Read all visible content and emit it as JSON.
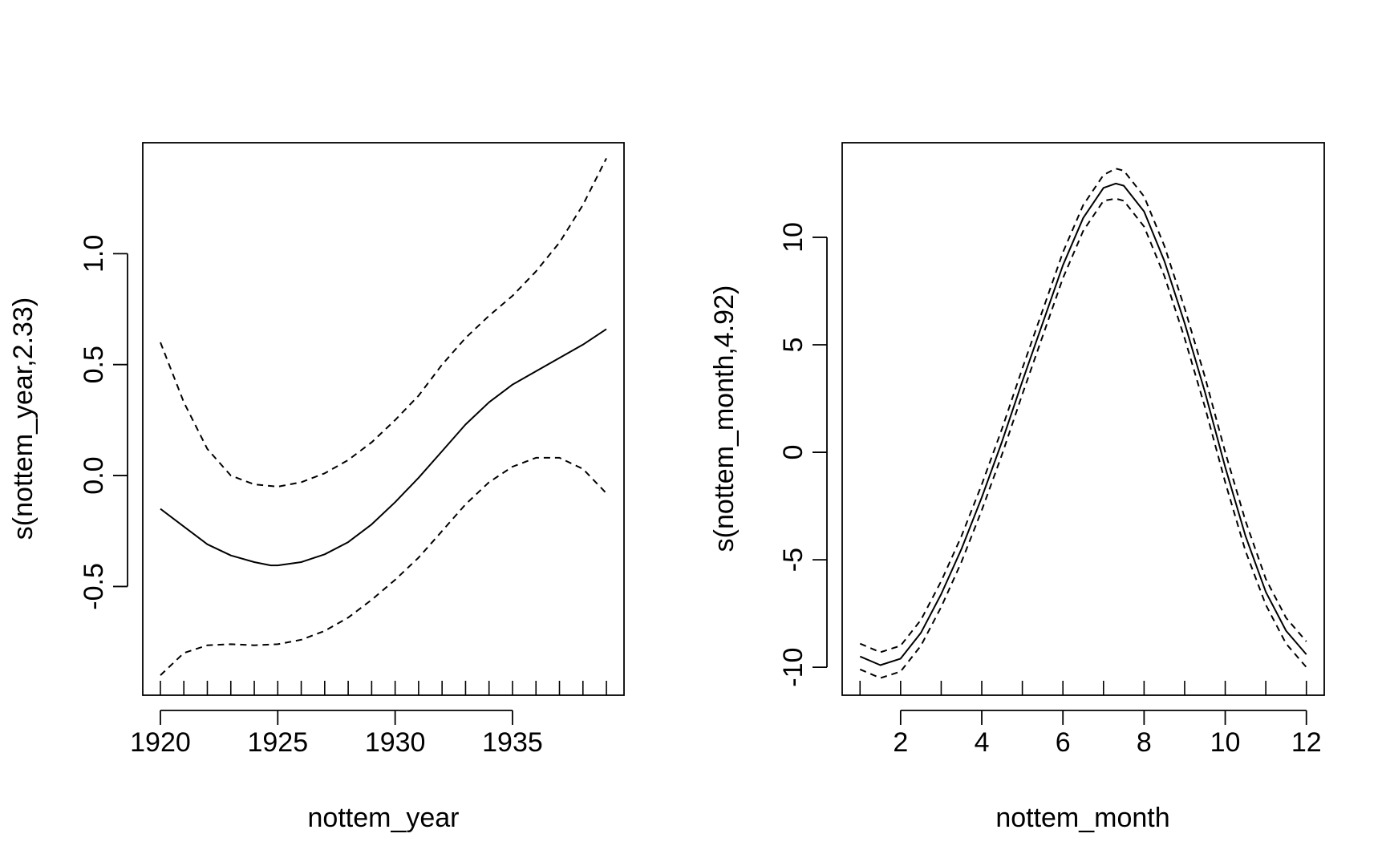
{
  "chart_data": [
    {
      "type": "line",
      "xlabel": "nottem_year",
      "ylabel": "s(nottem_year,2.33)",
      "xlim": [
        1919.25,
        1939.75
      ],
      "ylim": [
        -0.99,
        1.5
      ],
      "xticks": [
        1920,
        1925,
        1930,
        1935
      ],
      "xtick_labels": [
        "1920",
        "1925",
        "1930",
        "1935"
      ],
      "yticks": [
        -0.5,
        0.0,
        0.5,
        1.0
      ],
      "ytick_labels": [
        "-0.5",
        "0.0",
        "0.5",
        "1.0"
      ],
      "rug": [
        1920,
        1921,
        1922,
        1923,
        1924,
        1925,
        1926,
        1927,
        1928,
        1929,
        1930,
        1931,
        1932,
        1933,
        1934,
        1935,
        1936,
        1937,
        1938,
        1939
      ],
      "grid": false,
      "series": [
        {
          "style": "solid",
          "x": [
            1920,
            1921,
            1922,
            1923,
            1924,
            1924.7,
            1925,
            1926,
            1927,
            1928,
            1929,
            1930,
            1931,
            1932,
            1933,
            1934,
            1935,
            1936,
            1937,
            1938,
            1939
          ],
          "y": [
            -0.15,
            -0.23,
            -0.31,
            -0.36,
            -0.39,
            -0.405,
            -0.405,
            -0.39,
            -0.355,
            -0.3,
            -0.22,
            -0.12,
            -0.01,
            0.11,
            0.23,
            0.33,
            0.41,
            0.47,
            0.53,
            0.59,
            0.66
          ]
        },
        {
          "style": "dashed",
          "x": [
            1920,
            1921,
            1922,
            1923,
            1924,
            1925,
            1926,
            1927,
            1928,
            1929,
            1930,
            1931,
            1932,
            1933,
            1934,
            1935,
            1936,
            1937,
            1938,
            1939
          ],
          "y": [
            0.6,
            0.33,
            0.12,
            0.0,
            -0.04,
            -0.05,
            -0.03,
            0.01,
            0.07,
            0.15,
            0.25,
            0.36,
            0.5,
            0.62,
            0.72,
            0.81,
            0.92,
            1.05,
            1.22,
            1.43
          ]
        },
        {
          "style": "dashed",
          "x": [
            1920,
            1921,
            1922,
            1923,
            1924,
            1925,
            1926,
            1927,
            1928,
            1929,
            1930,
            1931,
            1932,
            1933,
            1934,
            1935,
            1936,
            1937,
            1938,
            1939
          ],
          "y": [
            -0.9,
            -0.8,
            -0.765,
            -0.76,
            -0.765,
            -0.76,
            -0.74,
            -0.7,
            -0.64,
            -0.56,
            -0.47,
            -0.37,
            -0.25,
            -0.13,
            -0.03,
            0.04,
            0.08,
            0.08,
            0.03,
            -0.08
          ]
        }
      ]
    },
    {
      "type": "line",
      "xlabel": "nottem_month",
      "ylabel": "s(nottem_month,4.92)",
      "xlim": [
        0.56,
        12.44
      ],
      "ylim": [
        -11.3,
        14.4
      ],
      "xticks": [
        2,
        4,
        6,
        8,
        10,
        12
      ],
      "xtick_labels": [
        "2",
        "4",
        "6",
        "8",
        "10",
        "12"
      ],
      "yticks": [
        -10,
        -5,
        0,
        5,
        10
      ],
      "ytick_labels": [
        "-10",
        "-5",
        "0",
        "5",
        "10"
      ],
      "rug": [
        1,
        2,
        3,
        4,
        5,
        6,
        7,
        8,
        9,
        10,
        11,
        12
      ],
      "grid": false,
      "series": [
        {
          "style": "solid",
          "x": [
            1,
            1.5,
            2,
            2.5,
            3,
            3.5,
            4,
            4.5,
            5,
            5.5,
            6,
            6.5,
            7,
            7.3,
            7.5,
            8,
            8.5,
            9,
            9.5,
            10,
            10.5,
            11,
            11.5,
            12
          ],
          "y": [
            -9.5,
            -9.9,
            -9.6,
            -8.4,
            -6.6,
            -4.5,
            -2.1,
            0.5,
            3.3,
            6.0,
            8.7,
            10.9,
            12.3,
            12.5,
            12.4,
            11.2,
            8.9,
            6.0,
            2.8,
            -0.7,
            -3.9,
            -6.5,
            -8.3,
            -9.4
          ]
        },
        {
          "style": "dashed",
          "x": [
            1,
            1.5,
            2,
            2.5,
            3,
            3.5,
            4,
            4.5,
            5,
            5.5,
            6,
            6.5,
            7,
            7.3,
            7.5,
            8,
            8.5,
            9,
            9.5,
            10,
            10.5,
            11,
            11.5,
            12
          ],
          "y": [
            -8.9,
            -9.3,
            -9.0,
            -7.8,
            -6.0,
            -3.9,
            -1.5,
            1.1,
            3.9,
            6.6,
            9.3,
            11.5,
            12.9,
            13.2,
            13.1,
            11.9,
            9.6,
            6.7,
            3.5,
            0.0,
            -3.2,
            -5.9,
            -7.7,
            -8.8
          ]
        },
        {
          "style": "dashed",
          "x": [
            1,
            1.5,
            2,
            2.5,
            3,
            3.5,
            4,
            4.5,
            5,
            5.5,
            6,
            6.5,
            7,
            7.3,
            7.5,
            8,
            8.5,
            9,
            9.5,
            10,
            10.5,
            11,
            11.5,
            12
          ],
          "y": [
            -10.1,
            -10.5,
            -10.2,
            -9.0,
            -7.2,
            -5.1,
            -2.7,
            -0.1,
            2.7,
            5.4,
            8.1,
            10.3,
            11.7,
            11.8,
            11.7,
            10.5,
            8.2,
            5.3,
            2.1,
            -1.4,
            -4.6,
            -7.1,
            -8.9,
            -10.0
          ]
        }
      ]
    }
  ]
}
